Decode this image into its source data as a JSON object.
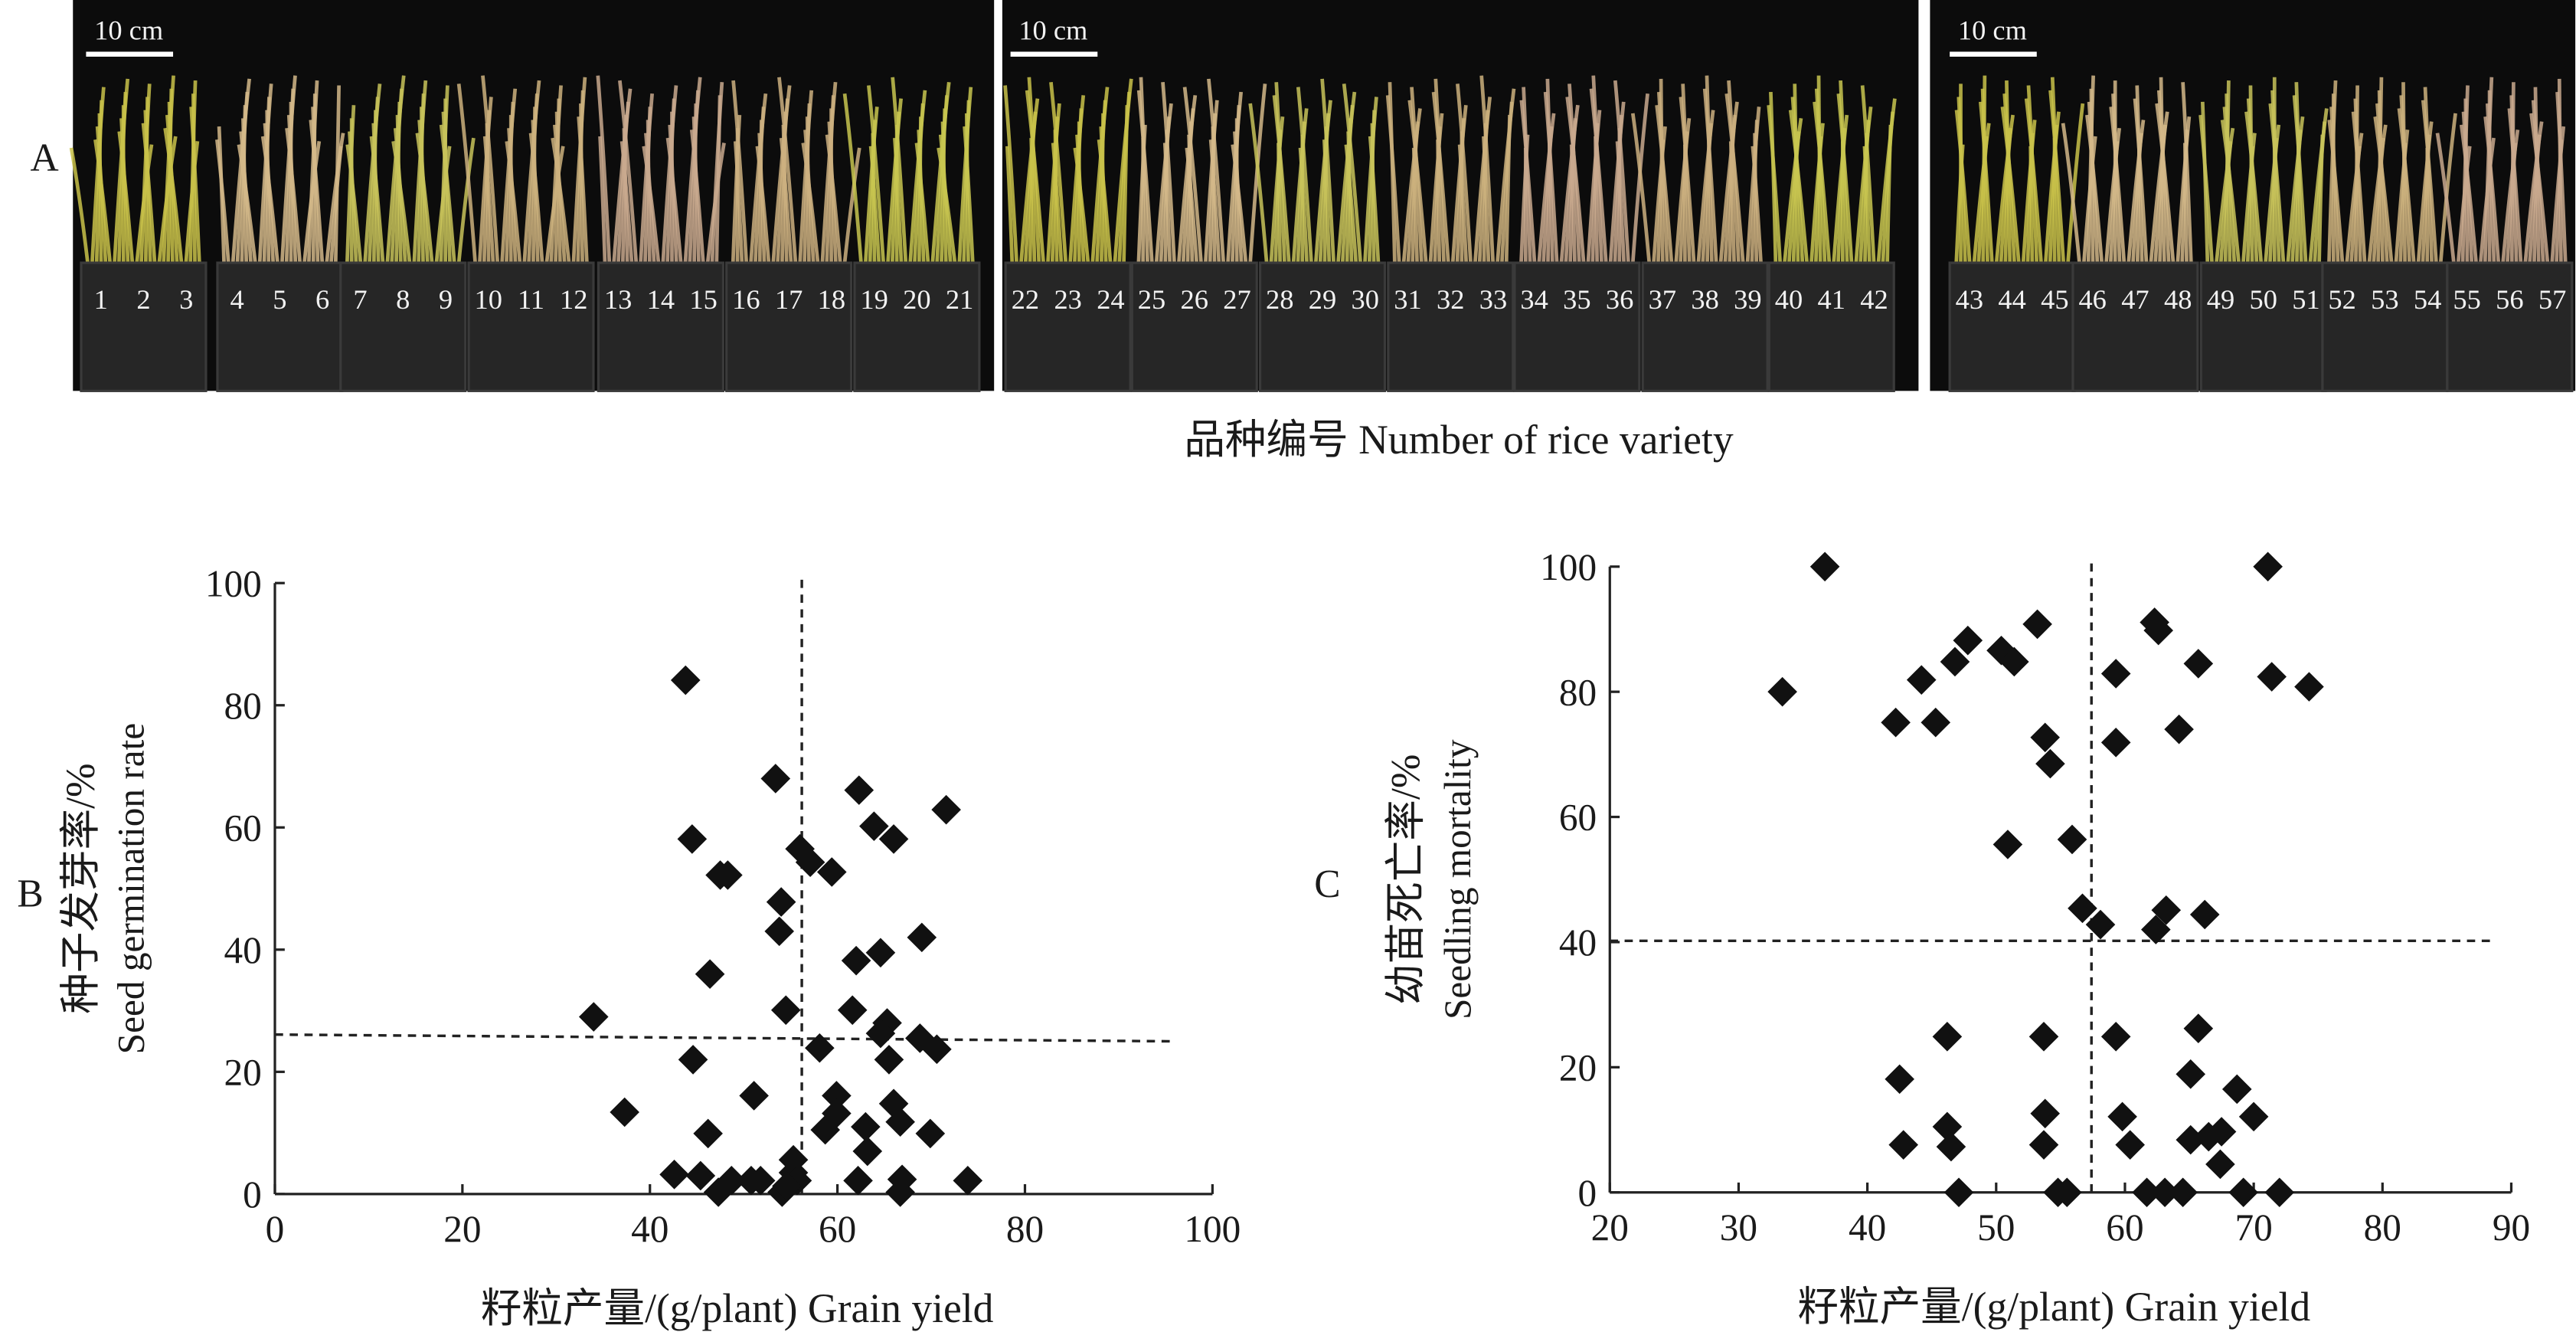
{
  "photo": {
    "panel_label": "A",
    "scale_bars": [
      "10 cm",
      "10 cm",
      "10 cm"
    ],
    "variety_numbers": [
      1,
      2,
      3,
      4,
      5,
      6,
      7,
      8,
      9,
      10,
      11,
      12,
      13,
      14,
      15,
      16,
      17,
      18,
      19,
      20,
      21,
      22,
      23,
      24,
      25,
      26,
      27,
      28,
      29,
      30,
      31,
      32,
      33,
      34,
      35,
      36,
      37,
      38,
      39,
      40,
      41,
      42,
      43,
      44,
      45,
      46,
      47,
      48,
      49,
      50,
      51,
      52,
      53,
      54,
      55,
      56,
      57
    ],
    "caption": "品种编号 Number of rice variety"
  },
  "chart_data": [
    {
      "type": "scatter",
      "panel_label": "B",
      "x_label": "籽粒产量/(g/plant) Grain yield",
      "y_label": [
        "种子发芽率/%",
        "Seed germination rate"
      ],
      "xlim": [
        0,
        100
      ],
      "ylim": [
        0,
        100
      ],
      "xticks": [
        0,
        20,
        40,
        60,
        80,
        100
      ],
      "yticks": [
        0,
        20,
        40,
        60,
        80,
        100
      ],
      "color": "#111111",
      "x": [
        43.8,
        53.4,
        62.3,
        71.6,
        63.9,
        44.5,
        66,
        56,
        57.1,
        59.4,
        47.5,
        48.3,
        54,
        53.8,
        69,
        64.6,
        62,
        46.4,
        34,
        54.5,
        61.6,
        65.3,
        64.6,
        68.8,
        70.6,
        58.1,
        65.5,
        44.6,
        59.9,
        51.1,
        66,
        59.9,
        66.7,
        63,
        58.7,
        37.3,
        46.2,
        69.9,
        55.3,
        63.2,
        55.3,
        42.6,
        45.4,
        66.9,
        73.9,
        62.2,
        55.7,
        50.8,
        48.7,
        51.8,
        47.3,
        54.1,
        54.6,
        66.7
      ],
      "values": [
        84.1,
        68,
        66.1,
        62.9,
        60.2,
        58.1,
        58.1,
        56.5,
        54.3,
        52.7,
        52.2,
        52.2,
        47.8,
        43,
        42,
        39.5,
        38.2,
        36,
        29,
        30.1,
        30.1,
        28,
        26.3,
        25.5,
        23.7,
        23.9,
        22,
        22,
        16.1,
        16.1,
        14.8,
        13.2,
        11.8,
        11,
        10.5,
        13.4,
        9.9,
        9.9,
        5.6,
        7,
        3.5,
        3.2,
        3,
        2.4,
        2.2,
        2.2,
        2.2,
        2.2,
        2.2,
        2.2,
        0.3,
        0.3,
        1.3,
        0.3
      ],
      "ref_lines": [
        {
          "x": [
            56.2,
            56.2
          ],
          "y": [
            0,
            101
          ]
        },
        {
          "x": [
            0,
            95.5
          ],
          "y": [
            26.1,
            25
          ]
        }
      ]
    },
    {
      "type": "scatter",
      "panel_label": "C",
      "x_label": "籽粒产量/(g/plant) Grain yield",
      "y_label": [
        "幼苗死亡率/%",
        "Seedling mortality"
      ],
      "xlim": [
        20,
        90
      ],
      "ylim": [
        0,
        100
      ],
      "xticks": [
        20,
        30,
        40,
        50,
        60,
        70,
        80,
        90
      ],
      "yticks": [
        0,
        20,
        40,
        60,
        80,
        100
      ],
      "color": "#111111",
      "x": [
        36.7,
        71.1,
        33.4,
        44.2,
        46.8,
        47.8,
        53.2,
        50.4,
        51.4,
        62.3,
        62.6,
        71.4,
        74.3,
        59.3,
        65.7,
        42.2,
        45.3,
        64.2,
        53.8,
        59.3,
        54.2,
        50.9,
        55.9,
        56.7,
        63.2,
        66.2,
        58.1,
        62.4,
        65.7,
        46.2,
        53.7,
        59.3,
        65.1,
        42.5,
        68.7,
        53.8,
        59.8,
        70,
        46.2,
        67.5,
        65.1,
        66.5,
        42.8,
        46.5,
        53.7,
        60.4,
        67.4,
        47.1,
        54.8,
        55.5,
        61.7,
        63.1,
        64.5,
        69.2,
        72
      ],
      "values": [
        100,
        100,
        80,
        81.9,
        84.8,
        88.2,
        90.8,
        86.6,
        84.8,
        91.1,
        89.8,
        82.4,
        80.8,
        82.9,
        84.5,
        75.1,
        75.1,
        74,
        72.7,
        71.9,
        68.5,
        55.6,
        56.4,
        45.4,
        45.1,
        44.4,
        42.8,
        42,
        26.2,
        24.9,
        24.9,
        24.9,
        18.9,
        18.1,
        16.5,
        12.6,
        12.1,
        12.1,
        10.5,
        9.7,
        8.4,
        8.9,
        7.6,
        7.3,
        7.6,
        7.6,
        4.5,
        0,
        0,
        0,
        0,
        0,
        0,
        0,
        0
      ],
      "ref_lines": [
        {
          "x": [
            57.4,
            57.4
          ],
          "y": [
            0,
            100.5
          ]
        },
        {
          "x": [
            20,
            88.8
          ],
          "y": [
            40.2,
            40.2
          ]
        }
      ]
    }
  ]
}
